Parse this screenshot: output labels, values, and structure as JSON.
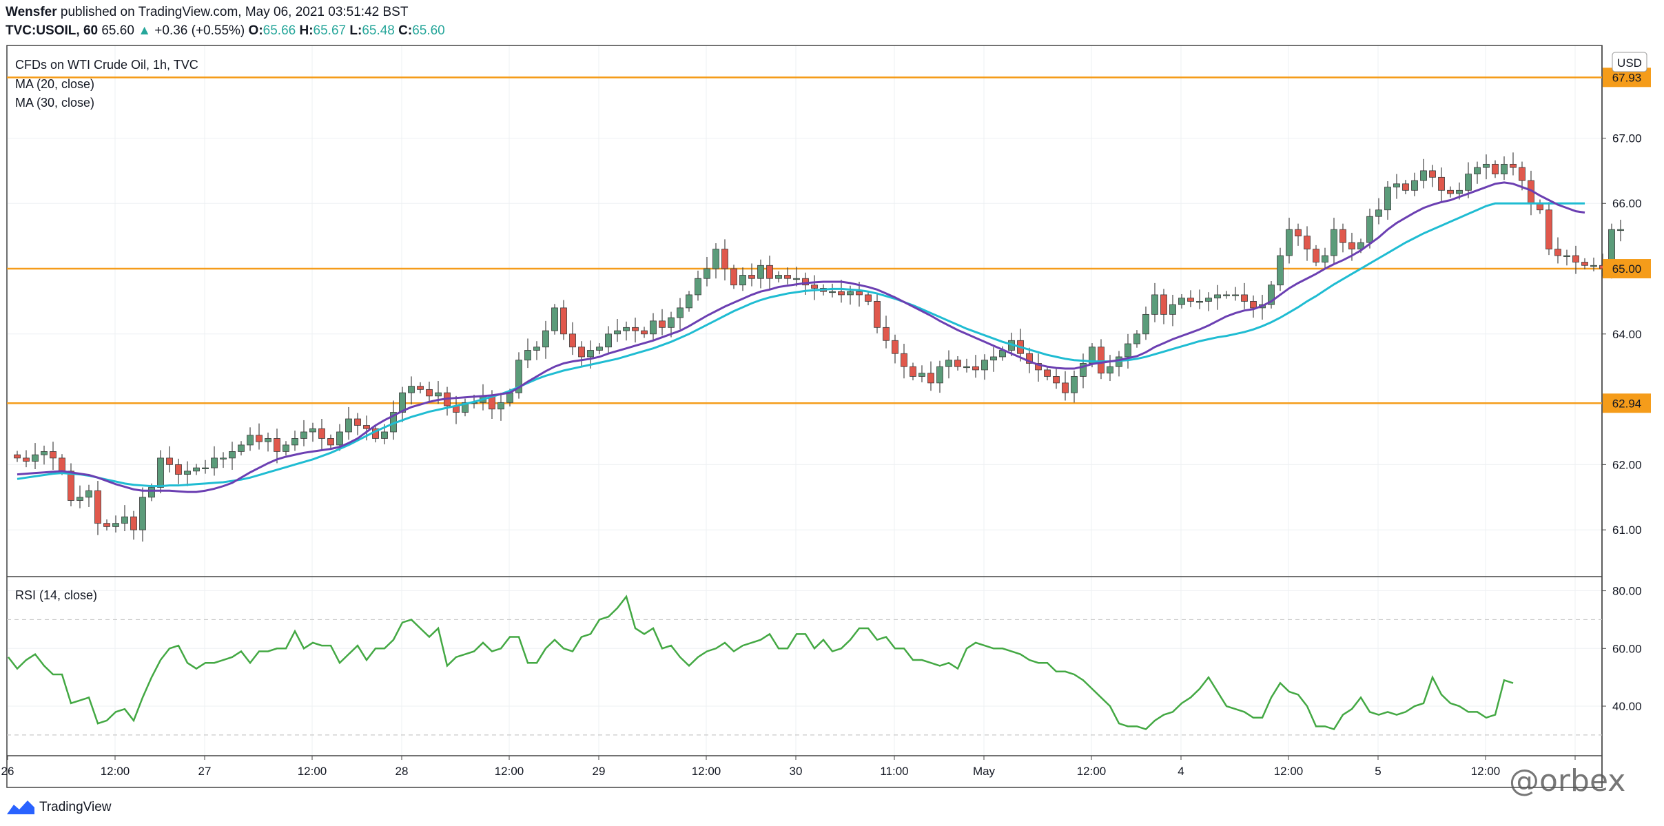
{
  "header": {
    "publisher_line": "Wensfer published on TradingView.com, May 06, 2021 03:51:42 BST",
    "author": "Wensfer",
    "publish_text": "published on TradingView.com, May 06, 2021 03:51:42 BST",
    "symbol": "TVC:USOIL, 60",
    "last": "65.60",
    "change_arrow": "▲",
    "change": "+0.36 (+0.55%)",
    "o_label": "O:",
    "o": "65.66",
    "h_label": "H:",
    "h": "65.67",
    "l_label": "L:",
    "l": "65.48",
    "c_label": "C:",
    "c": "65.60"
  },
  "legend": {
    "title": "CFDs on WTI Crude Oil, 1h, TVC",
    "ma20": "MA (20, close)",
    "ma30": "MA (30, close)",
    "rsi": "RSI (14, close)"
  },
  "currency": "USD",
  "footer": {
    "brand": "TradingView"
  },
  "watermark": "@orbex",
  "colors": {
    "up": "#26a69a",
    "candle_up": "#5b9c7a",
    "candle_down": "#e0584c",
    "ma20": "#6b3fb2",
    "ma30": "#1fbcd2",
    "level": "#f59c1a",
    "rsi": "#43a843"
  },
  "chart_data": [
    {
      "type": "candlestick",
      "title": "CFDs on WTI Crude Oil, 1h, TVC",
      "ylim": [
        60.4,
        68.25
      ],
      "y_ticks": [
        "61.00",
        "62.00",
        "64.00",
        "65.00",
        "66.00",
        "67.00"
      ],
      "x_ticks": [
        {
          "label": "26",
          "i": 0
        },
        {
          "label": "12:00",
          "i": 12
        },
        {
          "label": "27",
          "i": 22
        },
        {
          "label": "12:00",
          "i": 34
        },
        {
          "label": "28",
          "i": 44
        },
        {
          "label": "12:00",
          "i": 56
        },
        {
          "label": "29",
          "i": 66
        },
        {
          "label": "12:00",
          "i": 78
        },
        {
          "label": "30",
          "i": 88
        },
        {
          "label": "11:00",
          "i": 99
        },
        {
          "label": "May",
          "i": 109
        },
        {
          "label": "12:00",
          "i": 121
        },
        {
          "label": "4",
          "i": 131
        },
        {
          "label": "12:00",
          "i": 143
        },
        {
          "label": "5",
          "i": 153
        },
        {
          "label": "12:00",
          "i": 165
        },
        {
          "label": "",
          "i": 175
        }
      ],
      "levels": [
        {
          "value": 67.93,
          "label": "67.93"
        },
        {
          "value": 65.0,
          "label": "65.00"
        },
        {
          "value": 62.94,
          "label": "62.94"
        }
      ],
      "close": [
        62.1,
        62.05,
        62.15,
        62.2,
        62.1,
        61.9,
        61.45,
        61.5,
        61.6,
        61.1,
        61.05,
        61.1,
        61.2,
        61.0,
        61.5,
        61.65,
        62.1,
        62.0,
        61.85,
        61.9,
        61.95,
        61.95,
        62.1,
        62.1,
        62.2,
        62.3,
        62.45,
        62.35,
        62.4,
        62.2,
        62.3,
        62.4,
        62.5,
        62.55,
        62.4,
        62.3,
        62.5,
        62.7,
        62.6,
        62.55,
        62.4,
        62.5,
        62.8,
        63.1,
        63.2,
        63.15,
        63.05,
        63.1,
        62.9,
        62.8,
        62.95,
        62.95,
        63.05,
        62.85,
        62.95,
        63.1,
        63.6,
        63.75,
        63.8,
        64.05,
        64.4,
        64.0,
        63.8,
        63.65,
        63.75,
        63.8,
        64.0,
        64.05,
        64.1,
        64.05,
        64.0,
        64.2,
        64.1,
        64.25,
        64.4,
        64.6,
        64.85,
        65.0,
        65.3,
        65.0,
        64.75,
        64.9,
        64.85,
        65.05,
        64.85,
        64.9,
        64.85,
        64.85,
        64.75,
        64.7,
        64.65,
        64.65,
        64.6,
        64.65,
        64.6,
        64.5,
        64.1,
        63.9,
        63.7,
        63.5,
        63.35,
        63.4,
        63.25,
        63.5,
        63.6,
        63.5,
        63.5,
        63.45,
        63.6,
        63.65,
        63.75,
        63.9,
        63.7,
        63.55,
        63.45,
        63.35,
        63.25,
        63.1,
        63.35,
        63.55,
        63.8,
        63.4,
        63.5,
        63.65,
        63.85,
        64.0,
        64.3,
        64.6,
        64.3,
        64.45,
        64.55,
        64.5,
        64.5,
        64.55,
        64.6,
        64.6,
        64.6,
        64.5,
        64.4,
        64.45,
        64.75,
        65.2,
        65.6,
        65.5,
        65.3,
        65.1,
        65.2,
        65.6,
        65.4,
        65.3,
        65.4,
        65.8,
        65.9,
        66.25,
        66.3,
        66.2,
        66.35,
        66.5,
        66.4,
        66.2,
        66.15,
        66.2,
        66.45,
        66.55,
        66.6,
        66.45,
        66.6,
        66.55,
        66.35,
        66.0,
        65.9,
        65.3,
        65.2,
        65.2,
        65.1,
        65.05,
        65.05,
        65.0,
        65.6,
        65.6
      ],
      "ma20": [
        61.85,
        61.86,
        61.87,
        61.88,
        61.89,
        61.9,
        61.88,
        61.86,
        61.84,
        61.8,
        61.75,
        61.7,
        61.66,
        61.62,
        61.6,
        61.6,
        61.6,
        61.6,
        61.59,
        61.58,
        61.58,
        61.6,
        61.63,
        61.67,
        61.72,
        61.8,
        61.88,
        61.95,
        62.02,
        62.08,
        62.12,
        62.15,
        62.18,
        62.2,
        62.22,
        62.24,
        62.27,
        62.33,
        62.4,
        62.5,
        62.6,
        62.68,
        62.75,
        62.82,
        62.88,
        62.92,
        62.96,
        62.99,
        63.01,
        63.02,
        63.03,
        63.04,
        63.05,
        63.06,
        63.08,
        63.1,
        63.18,
        63.27,
        63.35,
        63.43,
        63.5,
        63.55,
        63.58,
        63.6,
        63.62,
        63.65,
        63.7,
        63.74,
        63.78,
        63.82,
        63.86,
        63.9,
        63.95,
        64.0,
        64.05,
        64.12,
        64.2,
        64.28,
        64.35,
        64.42,
        64.48,
        64.54,
        64.6,
        64.65,
        64.68,
        64.72,
        64.74,
        64.76,
        64.78,
        64.79,
        64.8,
        64.8,
        64.8,
        64.78,
        64.75,
        64.72,
        64.68,
        64.62,
        64.56,
        64.49,
        64.42,
        64.35,
        64.28,
        64.2,
        64.13,
        64.06,
        64.0,
        63.94,
        63.88,
        63.82,
        63.76,
        63.7,
        63.64,
        63.58,
        63.53,
        63.5,
        63.48,
        63.47,
        63.47,
        63.5,
        63.54,
        63.56,
        63.58,
        63.6,
        63.63,
        63.66,
        63.72,
        63.8,
        63.86,
        63.92,
        63.97,
        64.02,
        64.07,
        64.13,
        64.2,
        64.27,
        64.32,
        64.36,
        64.38,
        64.43,
        64.5,
        64.6,
        64.7,
        64.78,
        64.85,
        64.92,
        65.0,
        65.07,
        65.13,
        65.2,
        65.28,
        65.38,
        65.48,
        65.6,
        65.7,
        65.78,
        65.86,
        65.93,
        65.98,
        66.02,
        66.05,
        66.1,
        66.15,
        66.2,
        66.25,
        66.3,
        66.32,
        66.3,
        66.25,
        66.2,
        66.12,
        66.05,
        65.98,
        65.93,
        65.88,
        65.86
      ],
      "ma30": [
        61.78,
        61.8,
        61.82,
        61.84,
        61.86,
        61.87,
        61.86,
        61.85,
        61.83,
        61.8,
        61.77,
        61.74,
        61.71,
        61.69,
        61.68,
        61.67,
        61.67,
        61.68,
        61.68,
        61.69,
        61.7,
        61.71,
        61.72,
        61.73,
        61.75,
        61.77,
        61.8,
        61.84,
        61.88,
        61.92,
        61.96,
        62.0,
        62.04,
        62.08,
        62.13,
        62.18,
        62.24,
        62.3,
        62.37,
        62.44,
        62.51,
        62.57,
        62.63,
        62.68,
        62.73,
        62.77,
        62.81,
        62.84,
        62.87,
        62.9,
        62.93,
        62.96,
        63.0,
        63.04,
        63.08,
        63.13,
        63.19,
        63.25,
        63.31,
        63.36,
        63.4,
        63.44,
        63.47,
        63.5,
        63.53,
        63.56,
        63.59,
        63.62,
        63.66,
        63.7,
        63.74,
        63.78,
        63.83,
        63.88,
        63.94,
        64.0,
        64.07,
        64.14,
        64.21,
        64.28,
        64.35,
        64.41,
        64.47,
        64.52,
        64.56,
        64.59,
        64.62,
        64.64,
        64.66,
        64.67,
        64.68,
        64.69,
        64.69,
        64.68,
        64.67,
        64.65,
        64.62,
        64.58,
        64.54,
        64.49,
        64.44,
        64.38,
        64.32,
        64.26,
        64.2,
        64.14,
        64.08,
        64.03,
        63.98,
        63.93,
        63.88,
        63.84,
        63.8,
        63.76,
        63.72,
        63.68,
        63.65,
        63.62,
        63.6,
        63.59,
        63.58,
        63.58,
        63.58,
        63.59,
        63.6,
        63.62,
        63.65,
        63.69,
        63.73,
        63.77,
        63.81,
        63.85,
        63.89,
        63.92,
        63.95,
        63.97,
        64.0,
        64.03,
        64.07,
        64.12,
        64.18,
        64.25,
        64.33,
        64.41,
        64.5,
        64.58,
        64.67,
        64.76,
        64.84,
        64.92,
        65.0,
        65.08,
        65.16,
        65.24,
        65.32,
        65.4,
        65.47,
        65.54,
        65.6,
        65.66,
        65.72,
        65.78,
        65.84,
        65.9,
        65.96,
        66.0,
        66.0,
        66.0,
        66.0,
        66.0,
        66.0,
        66.0,
        66.0,
        66.0,
        66.0,
        66.0
      ]
    },
    {
      "type": "line",
      "title": "RSI (14, close)",
      "ylim": [
        24,
        83
      ],
      "y_ticks": [
        "40.00",
        "60.00",
        "80.00"
      ],
      "bands": [
        30,
        70
      ],
      "values": [
        57,
        53,
        56,
        58,
        54,
        51,
        51,
        41,
        42,
        43,
        34,
        35,
        38,
        39,
        35,
        43,
        50,
        56,
        60,
        61,
        55,
        53,
        55,
        55,
        56,
        57,
        59,
        55,
        59,
        59,
        60,
        60,
        66,
        60,
        62,
        61,
        61,
        55,
        58,
        61,
        56,
        60,
        60,
        63,
        69,
        70,
        67,
        64,
        67,
        54,
        57,
        58,
        59,
        62,
        59,
        60,
        64,
        64,
        55,
        55,
        60,
        63,
        60,
        59,
        64,
        65,
        70,
        71,
        74,
        78,
        67,
        65,
        67,
        60,
        61,
        57,
        54,
        57,
        59,
        60,
        62,
        59,
        61,
        62,
        63,
        65,
        60,
        60,
        65,
        65,
        60,
        63,
        59,
        60,
        63,
        67,
        67,
        63,
        64,
        60,
        60,
        56,
        56,
        55,
        54,
        55,
        53,
        60,
        62,
        61,
        60,
        60,
        59,
        58,
        56,
        55,
        55,
        52,
        52,
        51,
        49,
        46,
        43,
        40,
        34,
        33,
        33,
        32,
        35,
        37,
        38,
        41,
        43,
        46,
        50,
        45,
        40,
        39,
        38,
        36,
        36,
        43,
        48,
        45,
        44,
        40,
        33,
        33,
        32,
        37,
        39,
        43,
        38,
        37,
        38,
        37,
        38,
        40,
        41,
        50,
        44,
        41,
        40,
        38,
        38,
        36,
        37,
        49,
        48
      ],
      "_note_": ""
    }
  ]
}
